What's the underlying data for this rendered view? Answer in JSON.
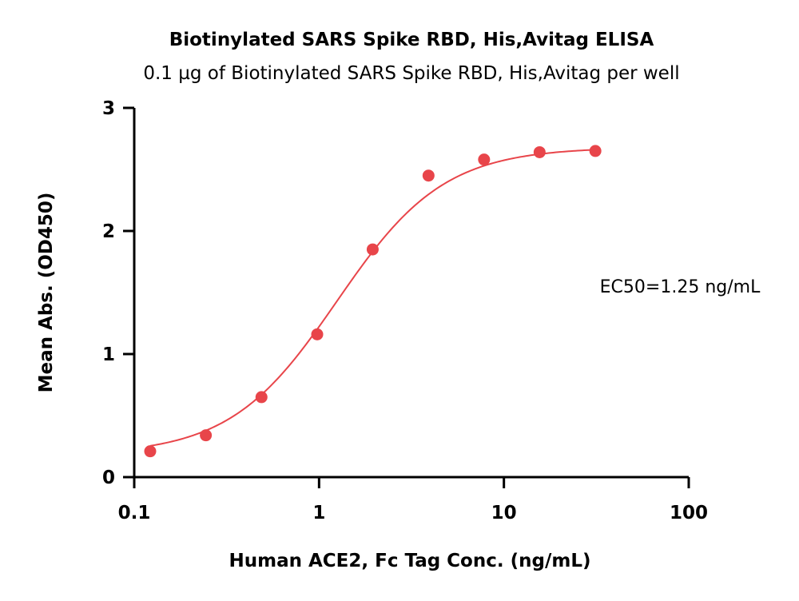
{
  "chart_data": {
    "type": "scatter",
    "title": "Biotinylated SARS Spike RBD, His,Avitag ELISA",
    "subtitle": "0.1 µg of Biotinylated SARS Spike RBD, His,Avitag per well",
    "xlabel": "Human ACE2, Fc Tag Conc. (ng/mL)",
    "ylabel": "Mean Abs. (OD450)",
    "xscale": "log",
    "xlim": [
      0.1,
      100
    ],
    "ylim": [
      0,
      3
    ],
    "xticks": [
      "0.1",
      "1",
      "10",
      "100"
    ],
    "yticks": [
      "0",
      "1",
      "2",
      "3"
    ],
    "annotation": "EC50=1.25 ng/mL",
    "color": "#e8454a",
    "grid": false,
    "series": [
      {
        "x": [
          0.122,
          0.244,
          0.488,
          0.977,
          1.95,
          3.91,
          7.81,
          15.6,
          31.25
        ],
        "y": [
          0.21,
          0.34,
          0.65,
          1.16,
          1.85,
          2.45,
          2.58,
          2.64,
          2.65
        ]
      }
    ],
    "fit": {
      "model": "4PL",
      "bottom": 0.18,
      "top": 2.68,
      "ec50": 1.25,
      "hill": 1.5
    }
  }
}
